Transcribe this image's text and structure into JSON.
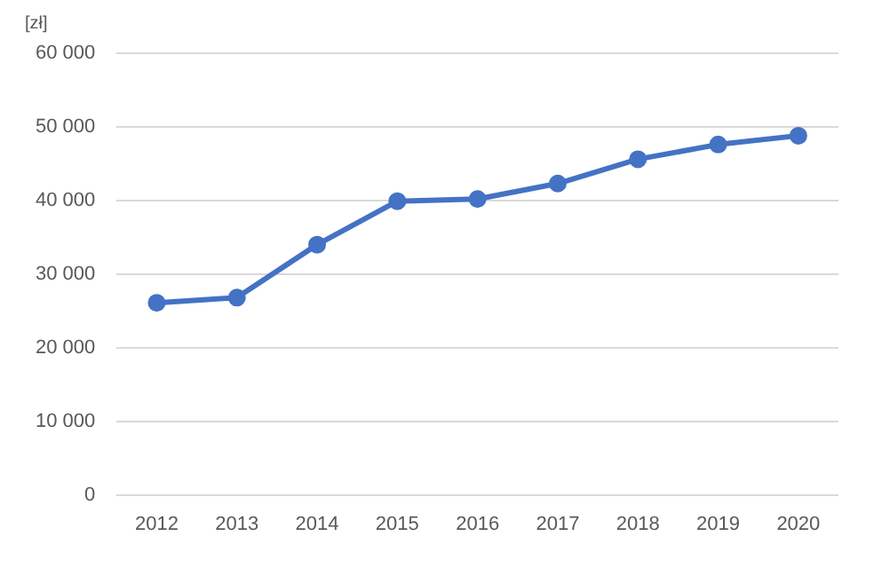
{
  "chart_data": {
    "type": "line",
    "ylabel": "[zł]",
    "categories": [
      "2012",
      "2013",
      "2014",
      "2015",
      "2016",
      "2017",
      "2018",
      "2019",
      "2020"
    ],
    "series": [
      {
        "color": "#4472c4",
        "values": [
          26100,
          26800,
          34000,
          39900,
          40200,
          42300,
          45600,
          47600,
          48800
        ]
      }
    ],
    "ylim": [
      0,
      60000
    ],
    "yticks": [
      {
        "value": 0,
        "label": "0"
      },
      {
        "value": 10000,
        "label": "10 000"
      },
      {
        "value": 20000,
        "label": "20 000"
      },
      {
        "value": 30000,
        "label": "30 000"
      },
      {
        "value": 40000,
        "label": "40 000"
      },
      {
        "value": 50000,
        "label": "50 000"
      },
      {
        "value": 60000,
        "label": "60 000"
      }
    ],
    "grid": "y",
    "legend": false,
    "marker": "circle",
    "line_style": "solid"
  }
}
